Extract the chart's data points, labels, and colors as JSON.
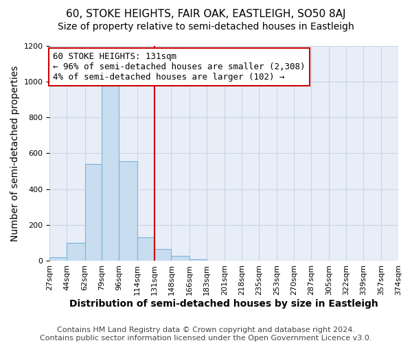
{
  "title": "60, STOKE HEIGHTS, FAIR OAK, EASTLEIGH, SO50 8AJ",
  "subtitle": "Size of property relative to semi-detached houses in Eastleigh",
  "xlabel": "Distribution of semi-detached houses by size in Eastleigh",
  "ylabel": "Number of semi-detached properties",
  "footer_lines": [
    "Contains HM Land Registry data © Crown copyright and database right 2024.",
    "Contains public sector information licensed under the Open Government Licence v3.0."
  ],
  "bin_edges": [
    27,
    44,
    62,
    79,
    96,
    114,
    131,
    148,
    166,
    183,
    201,
    218,
    235,
    253,
    270,
    287,
    305,
    322,
    339,
    357,
    374
  ],
  "bin_counts": [
    20,
    100,
    540,
    975,
    555,
    130,
    65,
    30,
    10,
    0,
    0,
    0,
    0,
    0,
    0,
    0,
    0,
    0,
    0,
    0
  ],
  "bar_facecolor": "#c8ddf0",
  "bar_edgecolor": "#7ab4d8",
  "vline_x": 131,
  "vline_color": "#cc0000",
  "annotation_line1": "60 STOKE HEIGHTS: 131sqm",
  "annotation_line2": "← 96% of semi-detached houses are smaller (2,308)",
  "annotation_line3": "4% of semi-detached houses are larger (102) →",
  "annotation_box_color": "#cc0000",
  "annotation_box_facecolor": "white",
  "ylim": [
    0,
    1200
  ],
  "yticks": [
    0,
    200,
    400,
    600,
    800,
    1000,
    1200
  ],
  "tick_labels": [
    "27sqm",
    "44sqm",
    "62sqm",
    "79sqm",
    "96sqm",
    "114sqm",
    "131sqm",
    "148sqm",
    "166sqm",
    "183sqm",
    "201sqm",
    "218sqm",
    "235sqm",
    "253sqm",
    "270sqm",
    "287sqm",
    "305sqm",
    "322sqm",
    "339sqm",
    "357sqm",
    "374sqm"
  ],
  "grid_color": "#c8d4e8",
  "background_color": "#ffffff",
  "plot_bg_color": "#e8eef8",
  "title_fontsize": 11,
  "subtitle_fontsize": 10,
  "axis_label_fontsize": 10,
  "tick_fontsize": 8,
  "footer_fontsize": 8,
  "annot_fontsize": 9
}
